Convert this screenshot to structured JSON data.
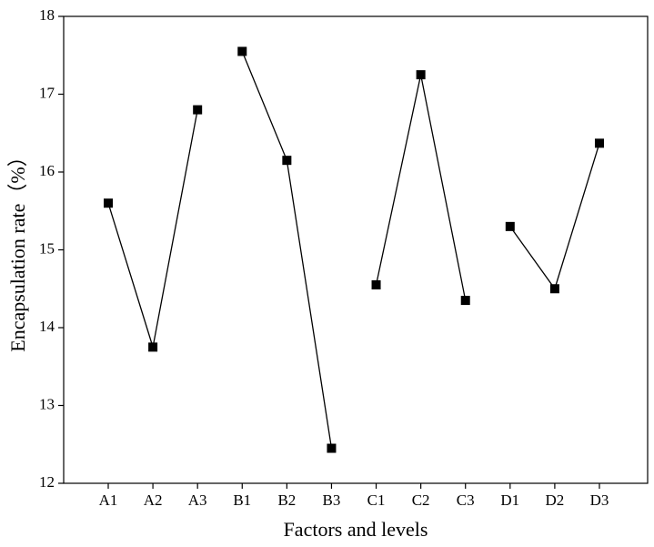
{
  "chart_data": {
    "type": "line",
    "x_label": "Factors and levels",
    "y_label": "Encapsulation rate（%）",
    "categories": [
      "A1",
      "A2",
      "A3",
      "B1",
      "B2",
      "B3",
      "C1",
      "C2",
      "C3",
      "D1",
      "D2",
      "D3"
    ],
    "series": [
      {
        "color": "#000000",
        "values": [
          15.6,
          13.75,
          16.8,
          null,
          null,
          null,
          null,
          null,
          null,
          null,
          null,
          null
        ]
      },
      {
        "color": "#000000",
        "values": [
          null,
          null,
          null,
          17.55,
          16.15,
          12.45,
          null,
          null,
          null,
          null,
          null,
          null
        ]
      },
      {
        "color": "#000000",
        "values": [
          null,
          null,
          null,
          null,
          null,
          null,
          14.55,
          17.25,
          14.35,
          null,
          null,
          null
        ]
      },
      {
        "color": "#000000",
        "values": [
          null,
          null,
          null,
          null,
          null,
          null,
          null,
          null,
          null,
          15.3,
          14.5,
          16.37
        ]
      }
    ],
    "ylim": [
      12,
      18
    ],
    "yticks": [
      12,
      13,
      14,
      15,
      16,
      17,
      18
    ],
    "grid": false
  }
}
